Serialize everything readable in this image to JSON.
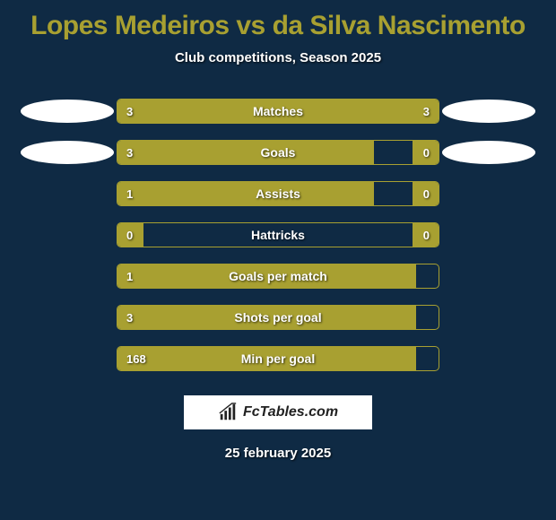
{
  "colors": {
    "background": "#0f2a44",
    "accent": "#a8a031",
    "text": "#ffffff",
    "ellipse": "#ffffff"
  },
  "title": "Lopes Medeiros vs da Silva Nascimento",
  "subtitle": "Club competitions, Season 2025",
  "rows": [
    {
      "label": "Matches",
      "left_val": "3",
      "right_val": "3",
      "left_pct": 50,
      "right_pct": 50,
      "show_left_ellipse": true,
      "show_right_ellipse": true
    },
    {
      "label": "Goals",
      "left_val": "3",
      "right_val": "0",
      "left_pct": 80,
      "right_pct": 8,
      "show_left_ellipse": true,
      "show_right_ellipse": true
    },
    {
      "label": "Assists",
      "left_val": "1",
      "right_val": "0",
      "left_pct": 80,
      "right_pct": 8,
      "show_left_ellipse": false,
      "show_right_ellipse": false
    },
    {
      "label": "Hattricks",
      "left_val": "0",
      "right_val": "0",
      "left_pct": 8,
      "right_pct": 8,
      "show_left_ellipse": false,
      "show_right_ellipse": false
    },
    {
      "label": "Goals per match",
      "left_val": "1",
      "right_val": "",
      "left_pct": 93,
      "right_pct": 0,
      "show_left_ellipse": false,
      "show_right_ellipse": false
    },
    {
      "label": "Shots per goal",
      "left_val": "3",
      "right_val": "",
      "left_pct": 93,
      "right_pct": 0,
      "show_left_ellipse": false,
      "show_right_ellipse": false
    },
    {
      "label": "Min per goal",
      "left_val": "168",
      "right_val": "",
      "left_pct": 93,
      "right_pct": 0,
      "show_left_ellipse": false,
      "show_right_ellipse": false
    }
  ],
  "logo": {
    "text": "FcTables.com"
  },
  "date": "25 february 2025"
}
